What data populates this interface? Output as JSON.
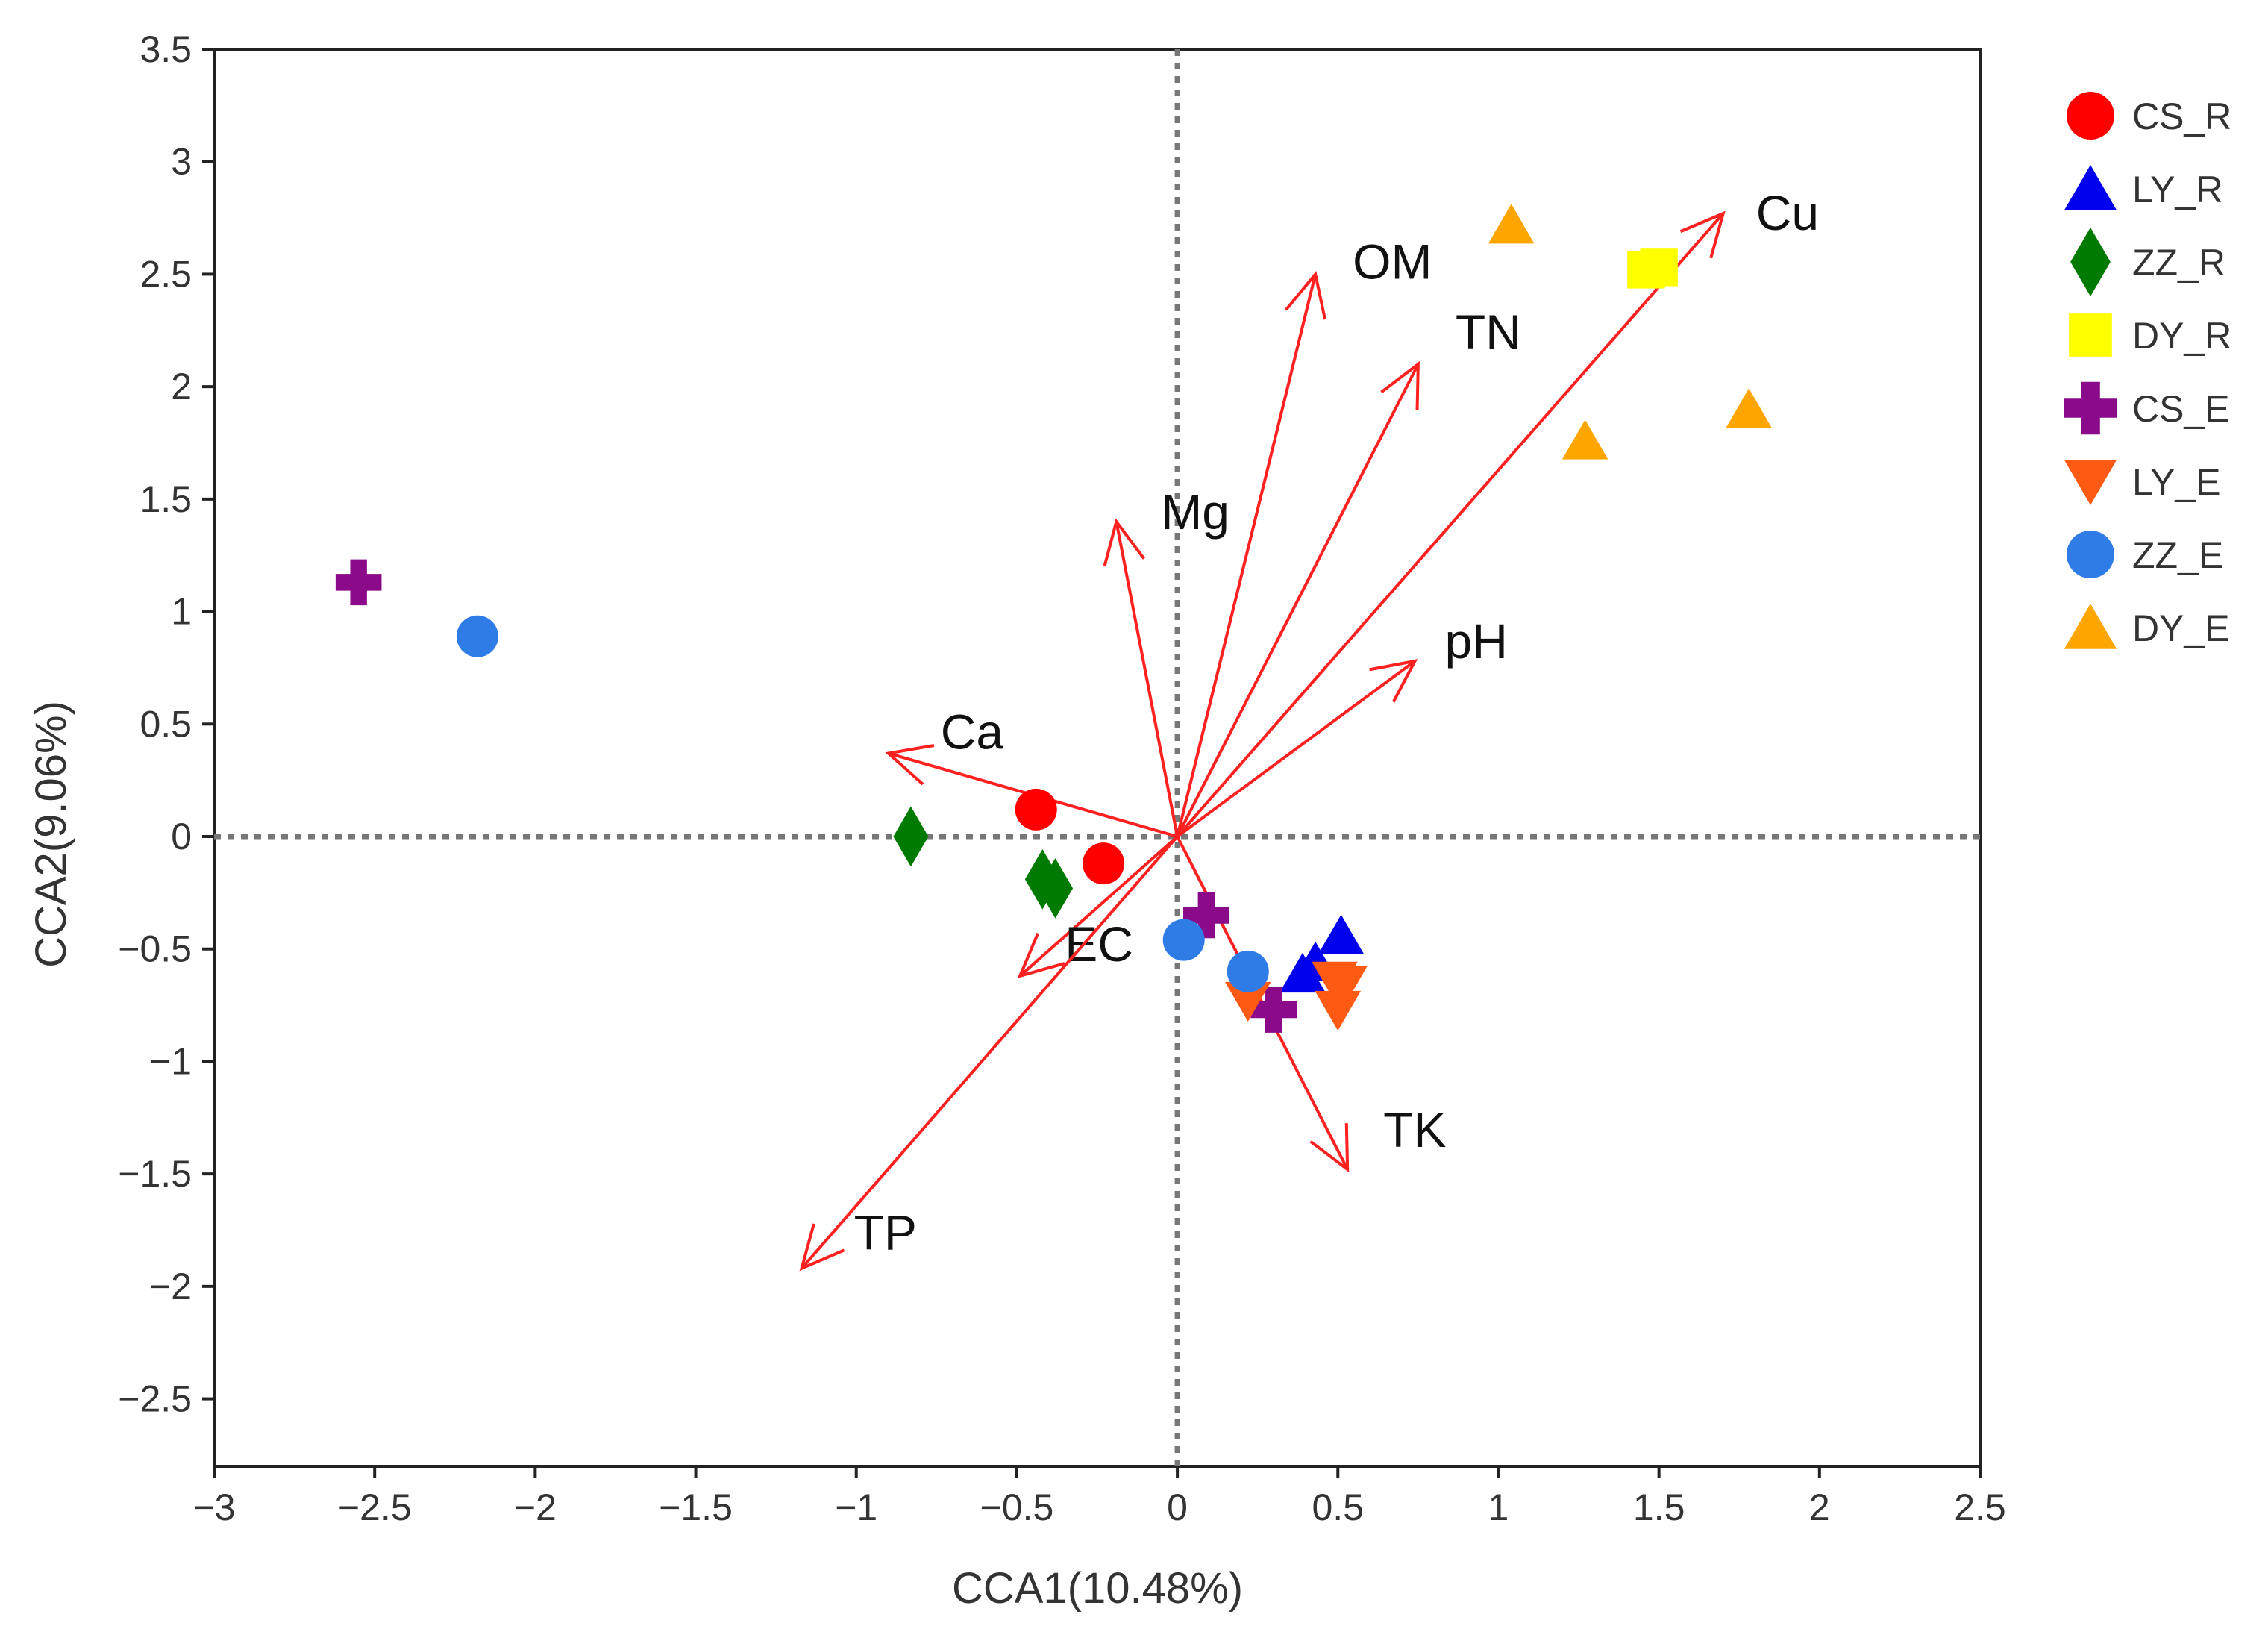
{
  "chart_data": {
    "type": "scatter",
    "subtype": "cca-biplot",
    "title": "",
    "xlabel": "CCA1(10.48%)",
    "ylabel": "CCA2(9.06%)",
    "xlim": [
      -3,
      2.5
    ],
    "ylim": [
      -2.8,
      3.5
    ],
    "xticks": [
      -3,
      -2.5,
      -2,
      -1.5,
      -1,
      -0.5,
      0,
      0.5,
      1,
      1.5,
      2,
      2.5
    ],
    "xtick_labels": [
      "−3",
      "−2.5",
      "−2",
      "−1.5",
      "−1",
      "−0.5",
      "0",
      "0.5",
      "1",
      "1.5",
      "2",
      "2.5"
    ],
    "yticks": [
      3.5,
      3,
      2.5,
      2,
      1.5,
      1,
      0.5,
      0,
      -0.5,
      -1,
      -1.5,
      -2,
      -2.5
    ],
    "ytick_labels": [
      "3.5",
      "3",
      "2.5",
      "2",
      "1.5",
      "1",
      "0.5",
      "0",
      "−0.5",
      "−1",
      "−1.5",
      "−2",
      "−2.5"
    ],
    "grid": false,
    "reference_lines": {
      "x": 0,
      "y": 0,
      "style": "dotted"
    },
    "legend_position": "right",
    "arrow_color": "#ff2020",
    "arrows": [
      {
        "label": "OM",
        "x": 0.43,
        "y": 2.5
      },
      {
        "label": "TN",
        "x": 0.75,
        "y": 2.1
      },
      {
        "label": "Cu",
        "x": 1.7,
        "y": 2.77
      },
      {
        "label": "Mg",
        "x": -0.19,
        "y": 1.4
      },
      {
        "label": "pH",
        "x": 0.74,
        "y": 0.78
      },
      {
        "label": "Ca",
        "x": -0.9,
        "y": 0.37
      },
      {
        "label": "EC",
        "x": -0.49,
        "y": -0.62
      },
      {
        "label": "TK",
        "x": 0.53,
        "y": -1.48
      },
      {
        "label": "TP",
        "x": -1.17,
        "y": -1.92
      }
    ],
    "series": [
      {
        "name": "CS_R",
        "marker": "circle",
        "color": "#ff0000",
        "points": [
          [
            -0.44,
            0.12
          ],
          [
            -0.23,
            -0.12
          ]
        ]
      },
      {
        "name": "LY_R",
        "marker": "triangle-up",
        "color": "#0000ee",
        "points": [
          [
            0.51,
            -0.44
          ],
          [
            0.43,
            -0.56
          ],
          [
            0.39,
            -0.61
          ]
        ]
      },
      {
        "name": "ZZ_R",
        "marker": "diamond",
        "color": "#007a00",
        "points": [
          [
            -0.83,
            0.0
          ],
          [
            -0.42,
            -0.19
          ],
          [
            -0.38,
            -0.23
          ]
        ]
      },
      {
        "name": "DY_R",
        "marker": "square",
        "color": "#ffff00",
        "points": [
          [
            1.46,
            2.52
          ],
          [
            1.5,
            2.53
          ]
        ]
      },
      {
        "name": "CS_E",
        "marker": "plus",
        "color": "#8a0a8a",
        "points": [
          [
            -2.55,
            1.13
          ],
          [
            0.09,
            -0.35
          ],
          [
            0.3,
            -0.77
          ]
        ]
      },
      {
        "name": "LY_E",
        "marker": "triangle-down",
        "color": "#ff5a14",
        "points": [
          [
            0.22,
            -0.73
          ],
          [
            0.49,
            -0.64
          ],
          [
            0.52,
            -0.66
          ],
          [
            0.5,
            -0.77
          ]
        ]
      },
      {
        "name": "ZZ_E",
        "marker": "circle",
        "color": "#2f7ce6",
        "points": [
          [
            -2.18,
            0.89
          ],
          [
            0.02,
            -0.46
          ],
          [
            0.22,
            -0.6
          ]
        ]
      },
      {
        "name": "DY_E",
        "marker": "triangle-up",
        "color": "#ffa500",
        "points": [
          [
            1.04,
            2.72
          ],
          [
            1.78,
            1.9
          ],
          [
            1.27,
            1.76
          ]
        ]
      }
    ]
  }
}
